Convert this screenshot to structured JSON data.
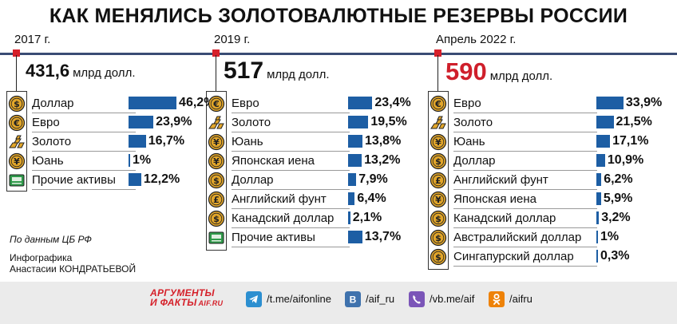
{
  "title": "КАК МЕНЯЛИСЬ ЗОЛОТОВАЛЮТНЫЕ РЕЗЕРВЫ РОССИИ",
  "colors": {
    "bar": "#1d5ea4",
    "accent": "#cf1f2b",
    "timeline": "#3a4c74"
  },
  "chart_data": [
    {
      "type": "bar",
      "period": "2017 г.",
      "total": "431,6",
      "unit": "млрд долл.",
      "categories": [
        "Доллар",
        "Евро",
        "Золото",
        "Юань",
        "Прочие активы"
      ],
      "values": [
        46.2,
        23.9,
        16.7,
        1,
        12.2
      ],
      "labels": [
        "46,2%",
        "23,9%",
        "16,7%",
        "1%",
        "12,2%"
      ],
      "icons": [
        "dollar-icon",
        "euro-icon",
        "gold-icon",
        "yuan-icon",
        "other-assets-icon"
      ],
      "xlim": [
        0,
        50
      ]
    },
    {
      "type": "bar",
      "period": "2019 г.",
      "total": "517",
      "unit": "млрд долл.",
      "categories": [
        "Евро",
        "Золото",
        "Юань",
        "Японская иена",
        "Доллар",
        "Английский фунт",
        "Канадский доллар",
        "Прочие активы"
      ],
      "values": [
        23.4,
        19.5,
        13.8,
        13.2,
        7.9,
        6.4,
        2.1,
        13.7
      ],
      "labels": [
        "23,4%",
        "19,5%",
        "13,8%",
        "13,2%",
        "7,9%",
        "6,4%",
        "2,1%",
        "13,7%"
      ],
      "icons": [
        "euro-icon",
        "gold-icon",
        "yuan-icon",
        "yen-icon",
        "dollar-icon",
        "pound-icon",
        "canadian-dollar-icon",
        "other-assets-icon"
      ],
      "xlim": [
        0,
        50
      ]
    },
    {
      "type": "bar",
      "period": "Апрель 2022 г.",
      "total": "590",
      "unit": "млрд долл.",
      "categories": [
        "Евро",
        "Золото",
        "Юань",
        "Доллар",
        "Английский фунт",
        "Японская иена",
        "Канадский доллар",
        "Австралийский доллар",
        "Сингапурский доллар"
      ],
      "values": [
        33.9,
        21.5,
        17.1,
        10.9,
        6.2,
        5.9,
        3.2,
        1,
        0.3
      ],
      "labels": [
        "33,9%",
        "21,5%",
        "17,1%",
        "10,9%",
        "6,2%",
        "5,9%",
        "3,2%",
        "1%",
        "0,3%"
      ],
      "icons": [
        "euro-icon",
        "gold-icon",
        "yuan-icon",
        "dollar-icon",
        "pound-icon",
        "yen-icon",
        "canadian-dollar-icon",
        "australian-dollar-icon",
        "singapore-dollar-icon"
      ],
      "xlim": [
        0,
        50
      ]
    }
  ],
  "source": "По данным ЦБ РФ",
  "credit": {
    "line1": "Инфографика",
    "line2": "Анастасии КОНДРАТЬЕВОЙ"
  },
  "footer": {
    "logo_line1": "АРГУМЕНТЫ",
    "logo_line2": "И ФАКТЫ",
    "logo_domain": "AIF.RU",
    "links": [
      {
        "icon": "telegram-icon",
        "text": "/t.me/aifonline",
        "color": "#2c8fd0"
      },
      {
        "icon": "vk-icon",
        "text": "/aif_ru",
        "color": "#3f72ad"
      },
      {
        "icon": "viber-icon",
        "text": "/vb.me/aif",
        "color": "#7b55b8"
      },
      {
        "icon": "ok-icon",
        "text": "/aifru",
        "color": "#ee8208"
      }
    ]
  }
}
